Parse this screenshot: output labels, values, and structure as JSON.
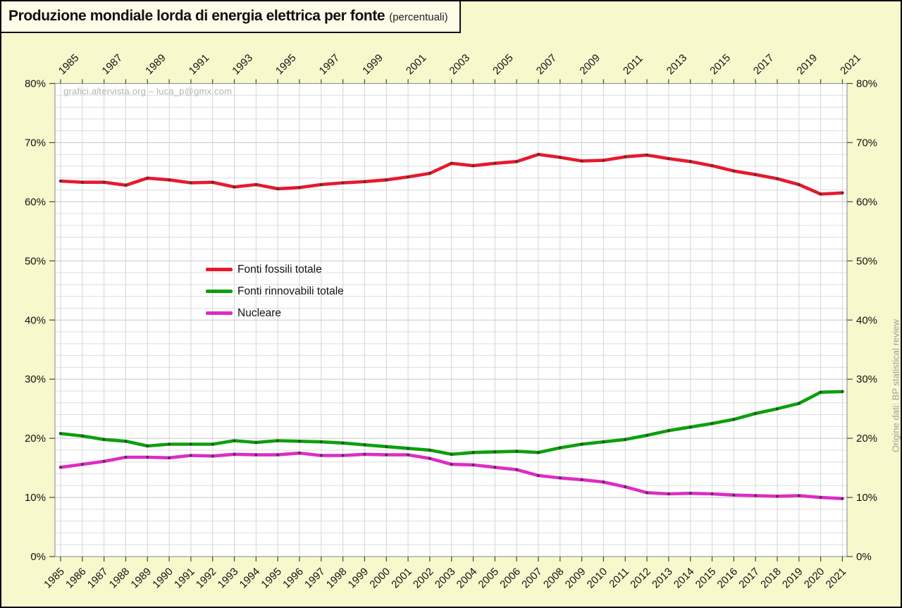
{
  "title": {
    "main": "Produzione mondiale lorda di energia elettrica per fonte",
    "suffix": "(percentuali)"
  },
  "watermark": "grafici.altervista.org – luca_p@gmx.com",
  "source_note": "Origine dati: BP statistical review",
  "colors": {
    "background": "#f8f8cd",
    "title_box_background": "#fcfce9",
    "plot_background": "#ffffff",
    "grid_minor": "#dedede",
    "grid_year": "#d6d6d6",
    "grid_major": "#c9c9c9",
    "plot_border": "#999999",
    "tick": "#444444",
    "axis_text": "#111111",
    "marker": "#3a3a3a",
    "fossili": "#e8192c",
    "rinnovabili": "#0ca00c",
    "nucleare": "#de2cc6"
  },
  "chart_data": {
    "type": "line",
    "title": "Produzione mondiale lorda di energia elettrica per fonte (percentuali)",
    "xlabel": "",
    "ylabel": "",
    "ylim": [
      0,
      80
    ],
    "y_major_step": 10,
    "y_minor_step": 2,
    "grid": "on",
    "legend_position": "center-left",
    "y_tick_labels": [
      "0%",
      "10%",
      "20%",
      "30%",
      "40%",
      "50%",
      "60%",
      "70%",
      "80%"
    ],
    "x": [
      1985,
      1986,
      1987,
      1988,
      1989,
      1990,
      1991,
      1992,
      1993,
      1994,
      1995,
      1996,
      1997,
      1998,
      1999,
      2000,
      2001,
      2002,
      2003,
      2004,
      2005,
      2006,
      2007,
      2008,
      2009,
      2010,
      2011,
      2012,
      2013,
      2014,
      2015,
      2016,
      2017,
      2018,
      2019,
      2020,
      2021
    ],
    "x_top_labels": [
      1985,
      1987,
      1989,
      1991,
      1993,
      1995,
      1997,
      1999,
      2001,
      2003,
      2005,
      2007,
      2009,
      2011,
      2013,
      2015,
      2017,
      2019,
      2021
    ],
    "series": [
      {
        "name": "Fonti fossili totale",
        "color": "#e8192c",
        "values": [
          63.5,
          63.3,
          63.3,
          62.8,
          64.0,
          63.7,
          63.2,
          63.3,
          62.5,
          62.9,
          62.2,
          62.4,
          62.9,
          63.2,
          63.4,
          63.7,
          64.2,
          64.8,
          66.5,
          66.1,
          66.5,
          66.8,
          68.0,
          67.5,
          66.9,
          67.0,
          67.6,
          67.9,
          67.3,
          66.8,
          66.1,
          65.2,
          64.6,
          63.9,
          62.9,
          61.3,
          61.5
        ]
      },
      {
        "name": "Fonti rinnovabili totale",
        "color": "#0ca00c",
        "values": [
          20.8,
          20.4,
          19.8,
          19.5,
          18.7,
          19.0,
          19.0,
          19.0,
          19.6,
          19.3,
          19.6,
          19.5,
          19.4,
          19.2,
          18.9,
          18.6,
          18.3,
          18.0,
          17.3,
          17.6,
          17.7,
          17.8,
          17.6,
          18.4,
          19.0,
          19.4,
          19.8,
          20.5,
          21.3,
          21.9,
          22.5,
          23.2,
          24.2,
          25.0,
          25.9,
          27.8,
          27.9
        ]
      },
      {
        "name": "Nucleare",
        "color": "#de2cc6",
        "values": [
          15.1,
          15.6,
          16.1,
          16.8,
          16.8,
          16.7,
          17.1,
          17.0,
          17.3,
          17.2,
          17.2,
          17.5,
          17.1,
          17.1,
          17.3,
          17.2,
          17.2,
          16.6,
          15.6,
          15.5,
          15.1,
          14.7,
          13.7,
          13.3,
          13.0,
          12.6,
          11.8,
          10.8,
          10.6,
          10.7,
          10.6,
          10.4,
          10.3,
          10.2,
          10.3,
          10.0,
          9.8
        ]
      }
    ]
  }
}
